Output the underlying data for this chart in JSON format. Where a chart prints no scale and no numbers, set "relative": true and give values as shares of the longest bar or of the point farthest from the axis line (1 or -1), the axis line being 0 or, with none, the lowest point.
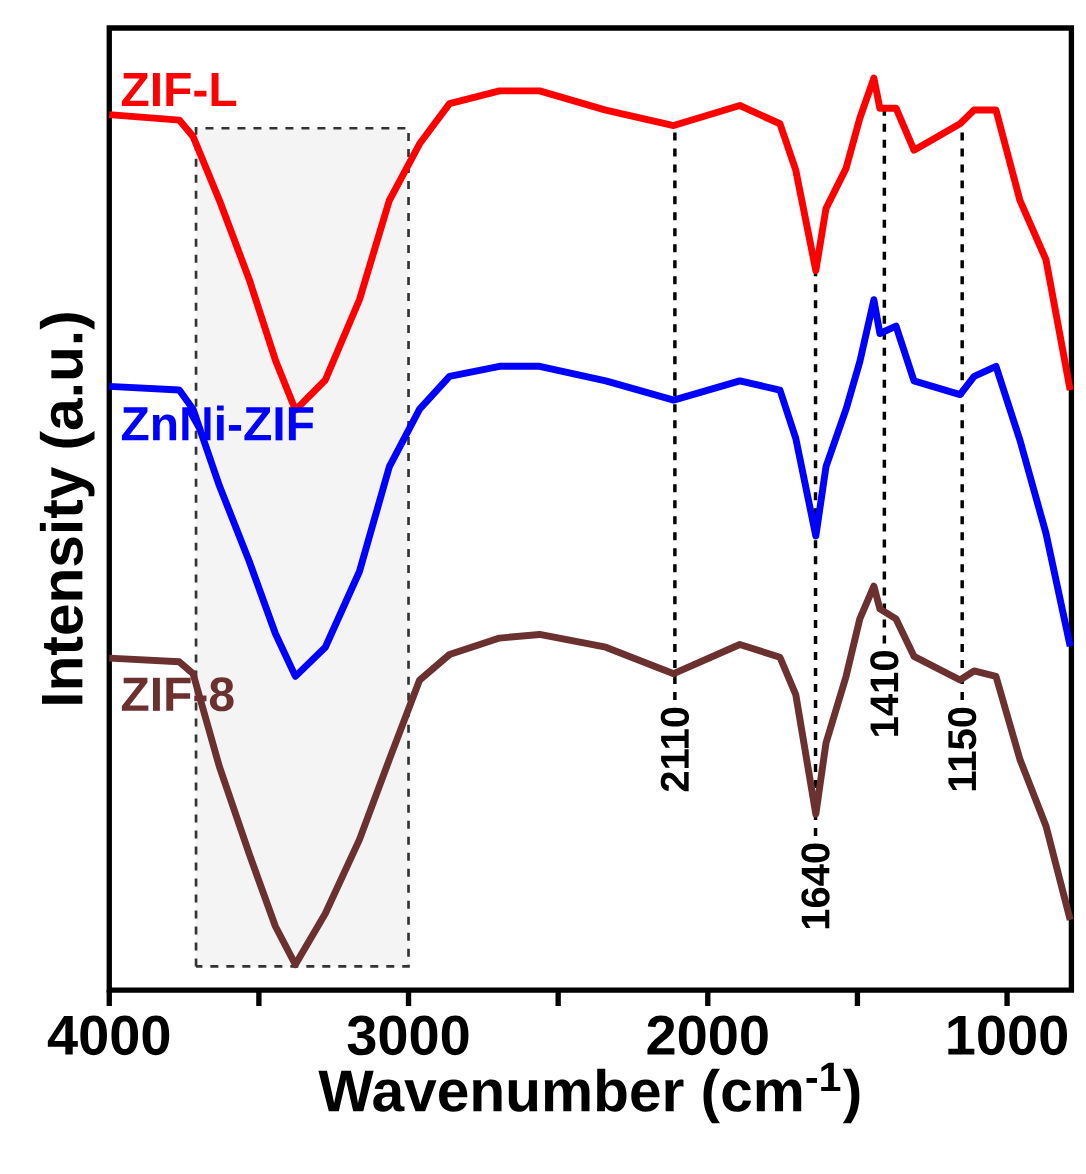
{
  "chart_data": {
    "type": "line",
    "relative": true,
    "xlabel": "Wavenumber (cm$^{-1}$)",
    "ylabel": "Intensity (a.u.)",
    "x": [
      4000,
      3766,
      3720,
      3632,
      3532,
      3445,
      3378,
      3278,
      3164,
      3064,
      2963,
      2863,
      2696,
      2562,
      2341,
      2114,
      1893,
      1759,
      1706,
      1639,
      1605,
      1538,
      1492,
      1445,
      1425,
      1371,
      1311,
      1157,
      1110,
      1037,
      957,
      870,
      789
    ],
    "series": [
      {
        "name": "ZIF-L",
        "color": "#ff0000",
        "values": [
          0.96,
          0.954,
          0.936,
          0.866,
          0.779,
          0.691,
          0.636,
          0.669,
          0.757,
          0.866,
          0.928,
          0.972,
          0.986,
          0.986,
          0.965,
          0.948,
          0.97,
          0.95,
          0.899,
          0.789,
          0.857,
          0.901,
          0.956,
          1,
          0.967,
          0.967,
          0.921,
          0.95,
          0.965,
          0.965,
          0.866,
          0.801,
          0.658
        ]
      },
      {
        "name": "ZnNi-ZIF",
        "color": "#0000ff",
        "values": [
          0.662,
          0.658,
          0.637,
          0.553,
          0.47,
          0.391,
          0.344,
          0.376,
          0.459,
          0.574,
          0.637,
          0.673,
          0.684,
          0.684,
          0.668,
          0.647,
          0.668,
          0.658,
          0.605,
          0.498,
          0.574,
          0.637,
          0.689,
          0.757,
          0.72,
          0.728,
          0.668,
          0.653,
          0.673,
          0.684,
          0.603,
          0.501,
          0.377
        ]
      },
      {
        "name": "ZIF-8",
        "color": "#6b3030",
        "values": [
          0.364,
          0.36,
          0.347,
          0.245,
          0.149,
          0.07,
          0.028,
          0.084,
          0.165,
          0.253,
          0.34,
          0.368,
          0.386,
          0.39,
          0.376,
          0.347,
          0.379,
          0.365,
          0.324,
          0.193,
          0.271,
          0.344,
          0.407,
          0.443,
          0.418,
          0.407,
          0.366,
          0.34,
          0.35,
          0.344,
          0.253,
          0.18,
          0.077
        ]
      }
    ],
    "xlim": [
      4000,
      785
    ],
    "xticks": [
      4000,
      {
        "value": 3500,
        "label": null
      },
      3000,
      {
        "value": 2500,
        "label": null
      },
      2000,
      {
        "value": 1500,
        "label": null
      },
      1000
    ],
    "ref_lines": [
      {
        "axis": "x",
        "value": 2110,
        "label": "2110",
        "line_style": "dashed"
      },
      {
        "axis": "x",
        "value": 1640,
        "label": "1640",
        "line_style": "dashed"
      },
      {
        "axis": "x",
        "value": 1410,
        "label": "1410",
        "line_style": "dashed"
      },
      {
        "axis": "x",
        "value": 1150,
        "label": "1150",
        "line_style": "dashed"
      }
    ],
    "bands": [
      {
        "axis": "x",
        "from": 3710,
        "to": 3000,
        "color": "#f4f4f4"
      }
    ],
    "grid": false,
    "marker": "none",
    "line_style": "solid"
  }
}
